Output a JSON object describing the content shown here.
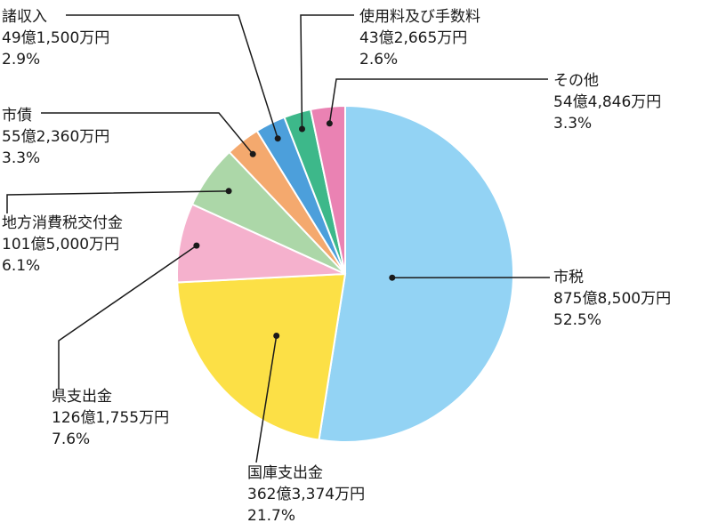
{
  "chart_data": {
    "type": "pie",
    "title": "",
    "slices": [
      {
        "name": "市税",
        "amount": "875億8,500万円",
        "percent_label": "52.5%",
        "value": 52.5,
        "color": "#93d3f4"
      },
      {
        "name": "国庫支出金",
        "amount": "362億3,374万円",
        "percent_label": "21.7%",
        "value": 21.7,
        "color": "#fce046"
      },
      {
        "name": "県支出金",
        "amount": "126億1,755万円",
        "percent_label": "7.6%",
        "value": 7.6,
        "color": "#f5b1cd"
      },
      {
        "name": "地方消費税交付金",
        "amount": "101億5,000万円",
        "percent_label": "6.1%",
        "value": 6.1,
        "color": "#acd7a8"
      },
      {
        "name": "市債",
        "amount": "55億2,360万円",
        "percent_label": "3.3%",
        "value": 3.3,
        "color": "#f4a96e"
      },
      {
        "name": "諸収入",
        "amount": "49億1,500万円",
        "percent_label": "2.9%",
        "value": 2.9,
        "color": "#4c9fdb"
      },
      {
        "name": "使用料及び手数料",
        "amount": "43億2,665万円",
        "percent_label": "2.6%",
        "value": 2.6,
        "color": "#3db88a"
      },
      {
        "name": "その他",
        "amount": "54億4,846万円",
        "percent_label": "3.3%",
        "value": 3.3,
        "color": "#ea82b3"
      }
    ]
  }
}
